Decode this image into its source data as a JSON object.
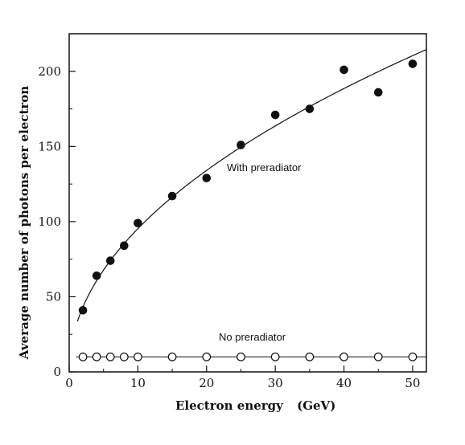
{
  "chart_data": {
    "type": "scatter",
    "xlabel": "Electron energy",
    "xunit": "(GeV)",
    "ylabel": "Average number of photons per electron",
    "xlim": [
      0,
      52
    ],
    "ylim": [
      0,
      225
    ],
    "xticks": [
      0,
      10,
      20,
      30,
      40,
      50
    ],
    "yticks": [
      0,
      50,
      100,
      150,
      200
    ],
    "x_minor_step": 5,
    "y_minor_step": 25,
    "grid": false,
    "series": [
      {
        "name": "With preradiator",
        "marker": "filled-circle",
        "fit_curve": true,
        "x": [
          2,
          4,
          6,
          8,
          10,
          15,
          20,
          25,
          30,
          35,
          40,
          45,
          50
        ],
        "y": [
          41,
          64,
          74,
          84,
          99,
          117,
          129,
          151,
          171,
          175,
          201,
          186,
          205
        ]
      },
      {
        "name": "No preradiator",
        "marker": "open-circle",
        "fit_line": true,
        "x": [
          2,
          4,
          6,
          8,
          10,
          15,
          20,
          25,
          30,
          35,
          40,
          45,
          50
        ],
        "y": [
          10,
          10,
          10,
          10,
          10,
          10,
          10,
          10,
          10,
          10,
          10,
          10,
          10
        ]
      }
    ],
    "annotations": [
      "With preradiator",
      "No preradiator"
    ]
  }
}
